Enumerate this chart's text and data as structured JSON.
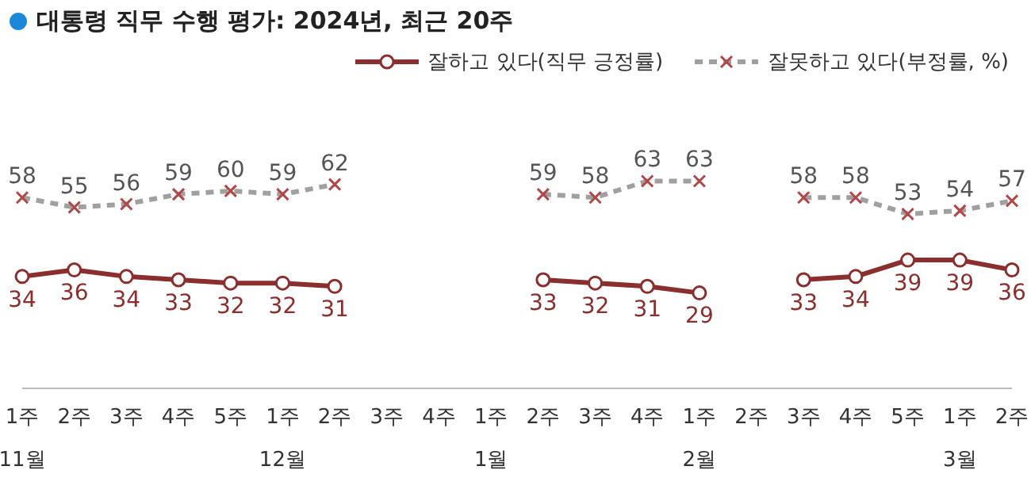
{
  "chart_data": {
    "type": "line",
    "title": "대통령 직무 수행 평가: 2024년, 최근 20주",
    "categories": [
      "1주\n11월",
      "2주",
      "3주",
      "4주",
      "5주",
      "1주\n12월",
      "2주",
      "3주",
      "4주",
      "1주\n1월",
      "2주",
      "3주",
      "4주",
      "1주\n2월",
      "2주",
      "3주",
      "4주",
      "5주",
      "1주\n3월",
      "2주"
    ],
    "series": [
      {
        "name": "잘하고 있다(직무 긍정률)",
        "color": "#8b2e2e",
        "marker": "circle",
        "line_style": "solid",
        "values": [
          34,
          36,
          34,
          33,
          32,
          32,
          31,
          null,
          null,
          null,
          33,
          32,
          31,
          29,
          null,
          33,
          34,
          39,
          39,
          36
        ]
      },
      {
        "name": "잘못하고 있다(부정률, %)",
        "color": "#a0a0a0",
        "marker": "cross",
        "line_style": "dashed",
        "values": [
          58,
          55,
          56,
          59,
          60,
          59,
          62,
          null,
          null,
          null,
          59,
          58,
          63,
          63,
          null,
          58,
          58,
          53,
          54,
          57
        ]
      }
    ],
    "data_labels": true,
    "legend": "top right",
    "grid": false
  }
}
